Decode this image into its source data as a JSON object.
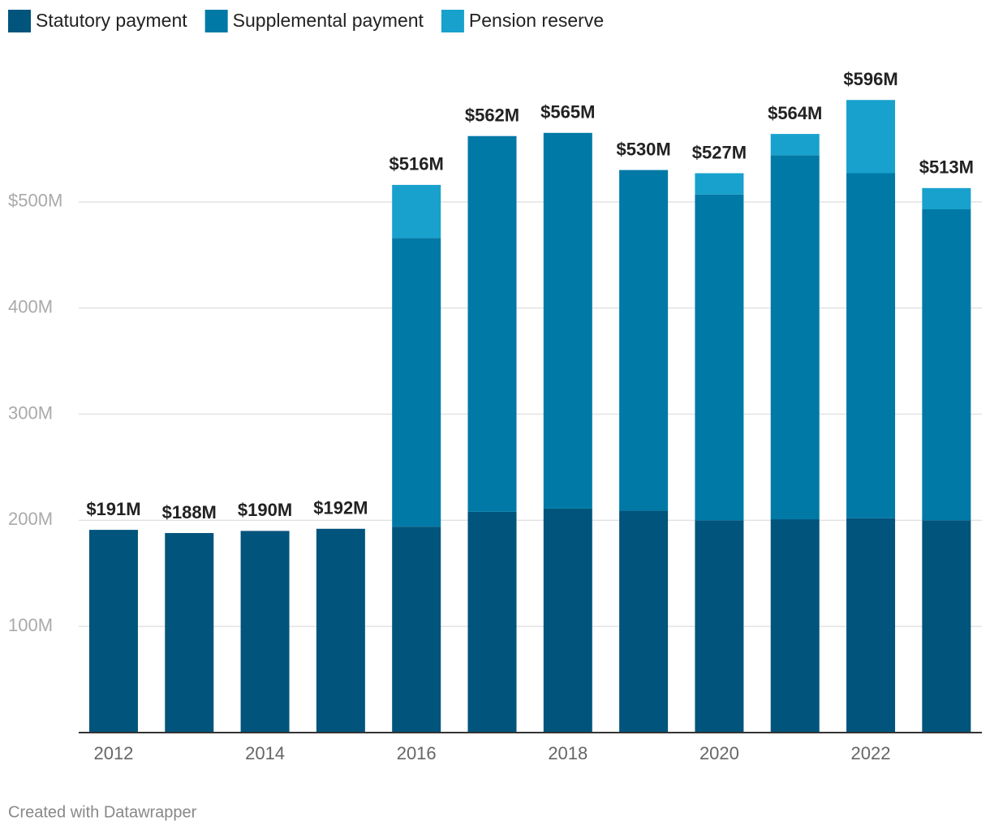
{
  "chart_data": {
    "type": "stacked-bar",
    "categories": [
      "2012",
      null,
      "2014",
      null,
      "2016",
      null,
      "2018",
      null,
      "2020",
      null,
      "2022",
      null
    ],
    "series": [
      {
        "name": "Statutory payment",
        "color": "#01547c",
        "values": [
          191,
          188,
          190,
          192,
          194,
          208,
          211,
          209,
          200,
          201,
          202,
          200
        ]
      },
      {
        "name": "Supplemental payment",
        "color": "#0079a6",
        "values": [
          0,
          0,
          0,
          0,
          272,
          354,
          354,
          321,
          307,
          343,
          325,
          293
        ]
      },
      {
        "name": "Pension reserve",
        "color": "#18a1cd",
        "values": [
          0,
          0,
          0,
          0,
          50,
          0,
          0,
          0,
          20,
          20,
          69,
          20
        ]
      }
    ],
    "totals": {
      "values": [
        191,
        188,
        190,
        192,
        516,
        562,
        565,
        530,
        527,
        564,
        596,
        513
      ],
      "value_labels": [
        "$191M",
        "$188M",
        "$190M",
        "$192M",
        "$516M",
        "$562M",
        "$565M",
        "$530M",
        "$527M",
        "$564M",
        "$596M",
        "$513M"
      ]
    },
    "ylim": [
      0,
      600
    ],
    "yticks": [
      {
        "value": 100,
        "label": "100M"
      },
      {
        "value": 200,
        "label": "200M"
      },
      {
        "value": 300,
        "label": "300M"
      },
      {
        "value": 400,
        "label": "400M"
      },
      {
        "value": 500,
        "label": "$500M"
      }
    ],
    "grid": true,
    "legend": "top",
    "footer": "Created with Datawrapper"
  }
}
